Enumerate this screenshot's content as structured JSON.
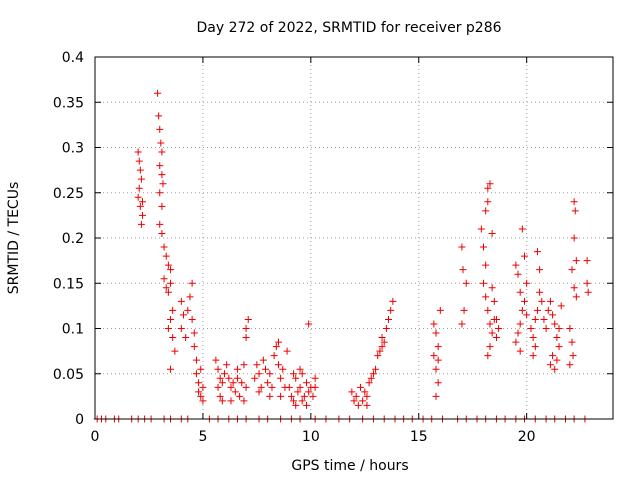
{
  "chart_data": {
    "type": "scatter",
    "title": "Day 272 of 2022, SRMTID for receiver p286",
    "xlabel": "GPS time / hours",
    "ylabel": "SRMTID / TECUs",
    "xlim": [
      0,
      24
    ],
    "ylim": [
      0,
      0.4
    ],
    "x_ticks": [
      0,
      5,
      10,
      15,
      20
    ],
    "x_tick_labels": [
      "0",
      "5",
      "10",
      "15",
      "20"
    ],
    "y_ticks": [
      0,
      0.05,
      0.1,
      0.15,
      0.2,
      0.25,
      0.3,
      0.35,
      0.4
    ],
    "y_tick_labels": [
      "0",
      "0.05",
      "0.1",
      "0.15",
      "0.2",
      "0.25",
      "0.3",
      "0.35",
      "0.4"
    ],
    "grid": true,
    "marker": "+",
    "marker_color": "#ee0000",
    "series": [
      {
        "name": "SRMTID",
        "points": [
          [
            0.1,
            0
          ],
          [
            0.3,
            0
          ],
          [
            0.5,
            0
          ],
          [
            0.9,
            0
          ],
          [
            1.1,
            0
          ],
          [
            1.7,
            0
          ],
          [
            2.0,
            0
          ],
          [
            2.3,
            0
          ],
          [
            2.6,
            0
          ],
          [
            3.2,
            0
          ],
          [
            3.5,
            0
          ],
          [
            4.0,
            0
          ],
          [
            4.3,
            0
          ],
          [
            5.3,
            0
          ],
          [
            5.7,
            0
          ],
          [
            6.2,
            0
          ],
          [
            6.6,
            0
          ],
          [
            7.0,
            0
          ],
          [
            7.6,
            0
          ],
          [
            8.0,
            0
          ],
          [
            8.6,
            0
          ],
          [
            9.1,
            0
          ],
          [
            9.5,
            0
          ],
          [
            10.2,
            0
          ],
          [
            10.7,
            0
          ],
          [
            11.3,
            0
          ],
          [
            11.8,
            0
          ],
          [
            12.4,
            0
          ],
          [
            12.9,
            0
          ],
          [
            13.4,
            0
          ],
          [
            13.9,
            0
          ],
          [
            14.3,
            0
          ],
          [
            14.7,
            0
          ],
          [
            15.2,
            0
          ],
          [
            15.6,
            0
          ],
          [
            16.1,
            0
          ],
          [
            16.8,
            0
          ],
          [
            17.2,
            0
          ],
          [
            17.7,
            0
          ],
          [
            18.1,
            0
          ],
          [
            18.6,
            0
          ],
          [
            19.0,
            0
          ],
          [
            19.5,
            0
          ],
          [
            19.9,
            0
          ],
          [
            20.4,
            0
          ],
          [
            20.9,
            0
          ],
          [
            21.3,
            0
          ],
          [
            21.8,
            0
          ],
          [
            22.2,
            0
          ],
          [
            22.7,
            0
          ],
          [
            2.0,
            0.295
          ],
          [
            2.05,
            0.285
          ],
          [
            2.1,
            0.275
          ],
          [
            2.15,
            0.265
          ],
          [
            2.0,
            0.245
          ],
          [
            2.1,
            0.235
          ],
          [
            2.2,
            0.225
          ],
          [
            2.05,
            0.255
          ],
          [
            2.15,
            0.215
          ],
          [
            2.2,
            0.24
          ],
          [
            2.9,
            0.36
          ],
          [
            2.95,
            0.335
          ],
          [
            3.0,
            0.32
          ],
          [
            3.05,
            0.305
          ],
          [
            3.1,
            0.295
          ],
          [
            3.0,
            0.28
          ],
          [
            3.1,
            0.27
          ],
          [
            3.15,
            0.26
          ],
          [
            3.0,
            0.25
          ],
          [
            3.1,
            0.235
          ],
          [
            3.0,
            0.215
          ],
          [
            3.1,
            0.205
          ],
          [
            3.2,
            0.19
          ],
          [
            3.3,
            0.18
          ],
          [
            3.4,
            0.17
          ],
          [
            3.5,
            0.165
          ],
          [
            3.2,
            0.155
          ],
          [
            3.3,
            0.145
          ],
          [
            3.4,
            0.14
          ],
          [
            3.5,
            0.15
          ],
          [
            3.6,
            0.12
          ],
          [
            3.5,
            0.11
          ],
          [
            3.4,
            0.1
          ],
          [
            3.6,
            0.09
          ],
          [
            3.7,
            0.075
          ],
          [
            3.5,
            0.055
          ],
          [
            4.0,
            0.13
          ],
          [
            4.1,
            0.115
          ],
          [
            4.0,
            0.1
          ],
          [
            4.2,
            0.09
          ],
          [
            4.3,
            0.12
          ],
          [
            4.4,
            0.135
          ],
          [
            4.5,
            0.15
          ],
          [
            4.5,
            0.11
          ],
          [
            4.6,
            0.095
          ],
          [
            4.6,
            0.08
          ],
          [
            4.7,
            0.065
          ],
          [
            4.7,
            0.05
          ],
          [
            4.8,
            0.04
          ],
          [
            4.8,
            0.03
          ],
          [
            4.9,
            0.025
          ],
          [
            5.0,
            0.035
          ],
          [
            5.0,
            0.02
          ],
          [
            4.9,
            0.055
          ],
          [
            5.6,
            0.065
          ],
          [
            5.7,
            0.055
          ],
          [
            5.8,
            0.045
          ],
          [
            5.9,
            0.04
          ],
          [
            5.7,
            0.035
          ],
          [
            5.8,
            0.025
          ],
          [
            5.9,
            0.02
          ],
          [
            6.0,
            0.05
          ],
          [
            6.1,
            0.06
          ],
          [
            6.2,
            0.045
          ],
          [
            6.3,
            0.035
          ],
          [
            6.4,
            0.04
          ],
          [
            6.5,
            0.03
          ],
          [
            6.6,
            0.045
          ],
          [
            6.7,
            0.025
          ],
          [
            6.8,
            0.04
          ],
          [
            6.9,
            0.06
          ],
          [
            7.0,
            0.035
          ],
          [
            6.9,
            0.02
          ],
          [
            7.0,
            0.1
          ],
          [
            7.1,
            0.11
          ],
          [
            7.0,
            0.09
          ],
          [
            6.6,
            0.055
          ],
          [
            6.3,
            0.02
          ],
          [
            7.4,
            0.045
          ],
          [
            7.5,
            0.06
          ],
          [
            7.6,
            0.05
          ],
          [
            7.7,
            0.035
          ],
          [
            7.8,
            0.065
          ],
          [
            7.9,
            0.055
          ],
          [
            8.0,
            0.04
          ],
          [
            8.1,
            0.05
          ],
          [
            8.2,
            0.035
          ],
          [
            8.3,
            0.07
          ],
          [
            8.4,
            0.08
          ],
          [
            8.5,
            0.06
          ],
          [
            8.6,
            0.045
          ],
          [
            8.7,
            0.055
          ],
          [
            8.8,
            0.035
          ],
          [
            8.9,
            0.075
          ],
          [
            8.5,
            0.085
          ],
          [
            8.1,
            0.025
          ],
          [
            7.6,
            0.03
          ],
          [
            8.6,
            0.025
          ],
          [
            9.0,
            0.035
          ],
          [
            9.1,
            0.025
          ],
          [
            9.2,
            0.02
          ],
          [
            9.3,
            0.045
          ],
          [
            9.4,
            0.03
          ],
          [
            9.5,
            0.035
          ],
          [
            9.6,
            0.05
          ],
          [
            9.7,
            0.025
          ],
          [
            9.8,
            0.04
          ],
          [
            9.9,
            0.03
          ],
          [
            10.0,
            0.035
          ],
          [
            10.1,
            0.025
          ],
          [
            10.2,
            0.035
          ],
          [
            9.5,
            0.055
          ],
          [
            9.3,
            0.015
          ],
          [
            9.8,
            0.015
          ],
          [
            9.9,
            0.105
          ],
          [
            9.6,
            0.02
          ],
          [
            10.2,
            0.045
          ],
          [
            9.2,
            0.05
          ],
          [
            11.9,
            0.03
          ],
          [
            12.0,
            0.02
          ],
          [
            12.1,
            0.025
          ],
          [
            12.2,
            0.015
          ],
          [
            12.3,
            0.035
          ],
          [
            12.4,
            0.02
          ],
          [
            12.5,
            0.03
          ],
          [
            12.6,
            0.025
          ],
          [
            12.7,
            0.04
          ],
          [
            12.8,
            0.045
          ],
          [
            12.9,
            0.05
          ],
          [
            13.0,
            0.055
          ],
          [
            13.1,
            0.07
          ],
          [
            13.2,
            0.075
          ],
          [
            13.3,
            0.08
          ],
          [
            13.4,
            0.085
          ],
          [
            13.5,
            0.1
          ],
          [
            13.6,
            0.11
          ],
          [
            13.7,
            0.12
          ],
          [
            13.8,
            0.13
          ],
          [
            13.3,
            0.09
          ],
          [
            12.6,
            0.015
          ],
          [
            15.7,
            0.105
          ],
          [
            15.8,
            0.095
          ],
          [
            15.9,
            0.08
          ],
          [
            15.7,
            0.07
          ],
          [
            15.8,
            0.055
          ],
          [
            15.9,
            0.04
          ],
          [
            15.8,
            0.025
          ],
          [
            16.0,
            0.12
          ],
          [
            15.9,
            0.065
          ],
          [
            17.0,
            0.19
          ],
          [
            17.05,
            0.165
          ],
          [
            17.1,
            0.12
          ],
          [
            17.0,
            0.105
          ],
          [
            17.2,
            0.15
          ],
          [
            17.9,
            0.21
          ],
          [
            18.0,
            0.19
          ],
          [
            18.1,
            0.17
          ],
          [
            18.2,
            0.24
          ],
          [
            18.3,
            0.26
          ],
          [
            18.2,
            0.255
          ],
          [
            18.1,
            0.23
          ],
          [
            18.0,
            0.15
          ],
          [
            18.1,
            0.135
          ],
          [
            18.2,
            0.12
          ],
          [
            18.3,
            0.105
          ],
          [
            18.4,
            0.095
          ],
          [
            18.5,
            0.11
          ],
          [
            18.6,
            0.09
          ],
          [
            18.7,
            0.1
          ],
          [
            18.4,
            0.145
          ],
          [
            18.5,
            0.13
          ],
          [
            18.3,
            0.08
          ],
          [
            18.2,
            0.07
          ],
          [
            18.4,
            0.205
          ],
          [
            18.6,
            0.11
          ],
          [
            19.5,
            0.17
          ],
          [
            19.6,
            0.16
          ],
          [
            19.7,
            0.14
          ],
          [
            19.8,
            0.12
          ],
          [
            19.7,
            0.105
          ],
          [
            19.6,
            0.095
          ],
          [
            19.5,
            0.085
          ],
          [
            19.8,
            0.21
          ],
          [
            19.9,
            0.18
          ],
          [
            20.0,
            0.15
          ],
          [
            19.9,
            0.13
          ],
          [
            20.0,
            0.115
          ],
          [
            19.7,
            0.075
          ],
          [
            20.2,
            0.1
          ],
          [
            20.3,
            0.09
          ],
          [
            20.4,
            0.11
          ],
          [
            20.5,
            0.12
          ],
          [
            20.6,
            0.14
          ],
          [
            20.5,
            0.185
          ],
          [
            20.6,
            0.165
          ],
          [
            20.4,
            0.08
          ],
          [
            20.3,
            0.07
          ],
          [
            20.7,
            0.13
          ],
          [
            20.8,
            0.11
          ],
          [
            20.9,
            0.1
          ],
          [
            21.0,
            0.12
          ],
          [
            21.1,
            0.13
          ],
          [
            21.2,
            0.115
          ],
          [
            21.3,
            0.105
          ],
          [
            21.4,
            0.09
          ],
          [
            21.5,
            0.08
          ],
          [
            21.2,
            0.07
          ],
          [
            21.1,
            0.06
          ],
          [
            21.3,
            0.055
          ],
          [
            21.4,
            0.065
          ],
          [
            21.6,
            0.125
          ],
          [
            21.5,
            0.1
          ],
          [
            22.0,
            0.1
          ],
          [
            22.1,
            0.085
          ],
          [
            22.15,
            0.07
          ],
          [
            22.0,
            0.06
          ],
          [
            22.2,
            0.24
          ],
          [
            22.25,
            0.23
          ],
          [
            22.2,
            0.2
          ],
          [
            22.3,
            0.175
          ],
          [
            22.1,
            0.165
          ],
          [
            22.2,
            0.145
          ],
          [
            22.3,
            0.135
          ],
          [
            22.8,
            0.175
          ],
          [
            22.8,
            0.15
          ],
          [
            22.85,
            0.14
          ]
        ]
      }
    ]
  }
}
